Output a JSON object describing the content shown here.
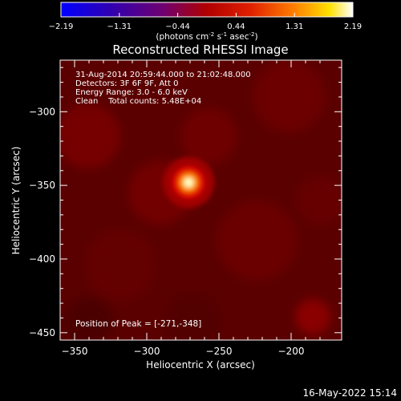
{
  "chart_data": {
    "type": "heatmap",
    "title": "Reconstructed RHESSI Image",
    "xlabel": "Heliocentric X (arcsec)",
    "ylabel": "Heliocentric Y (arcsec)",
    "xlim": [
      -360,
      -165
    ],
    "ylim": [
      -455,
      -265
    ],
    "x_ticks": [
      -350,
      -300,
      -250,
      -200
    ],
    "y_ticks": [
      -300,
      -350,
      -400,
      -450
    ],
    "colorbar": {
      "range": [
        -2.19,
        2.19
      ],
      "ticks": [
        "-2.19",
        "-1.31",
        "-0.44",
        "0.44",
        "1.31",
        "2.19"
      ],
      "unit_prefix": "(photons cm",
      "unit_exp1": "-2",
      "unit_mid": " s",
      "unit_exp2": "-1",
      "unit_mid2": " asec",
      "unit_exp3": "-2",
      "unit_suffix": ")"
    },
    "annotations": [
      "31-Aug-2014 20:59:44.000 to 21:02:48.000",
      "Detectors: 3F 6F 9F, Att 0",
      "Energy Range: 3.0 - 6.0 keV",
      "Clean    Total counts: 5.48E+04"
    ],
    "peak_label": "Position of Peak = [-271,-348]",
    "peak": {
      "x": -271,
      "y": -348,
      "value": 2.19
    },
    "background_level": 0.3
  },
  "timestamp": "16-May-2022 15:14"
}
